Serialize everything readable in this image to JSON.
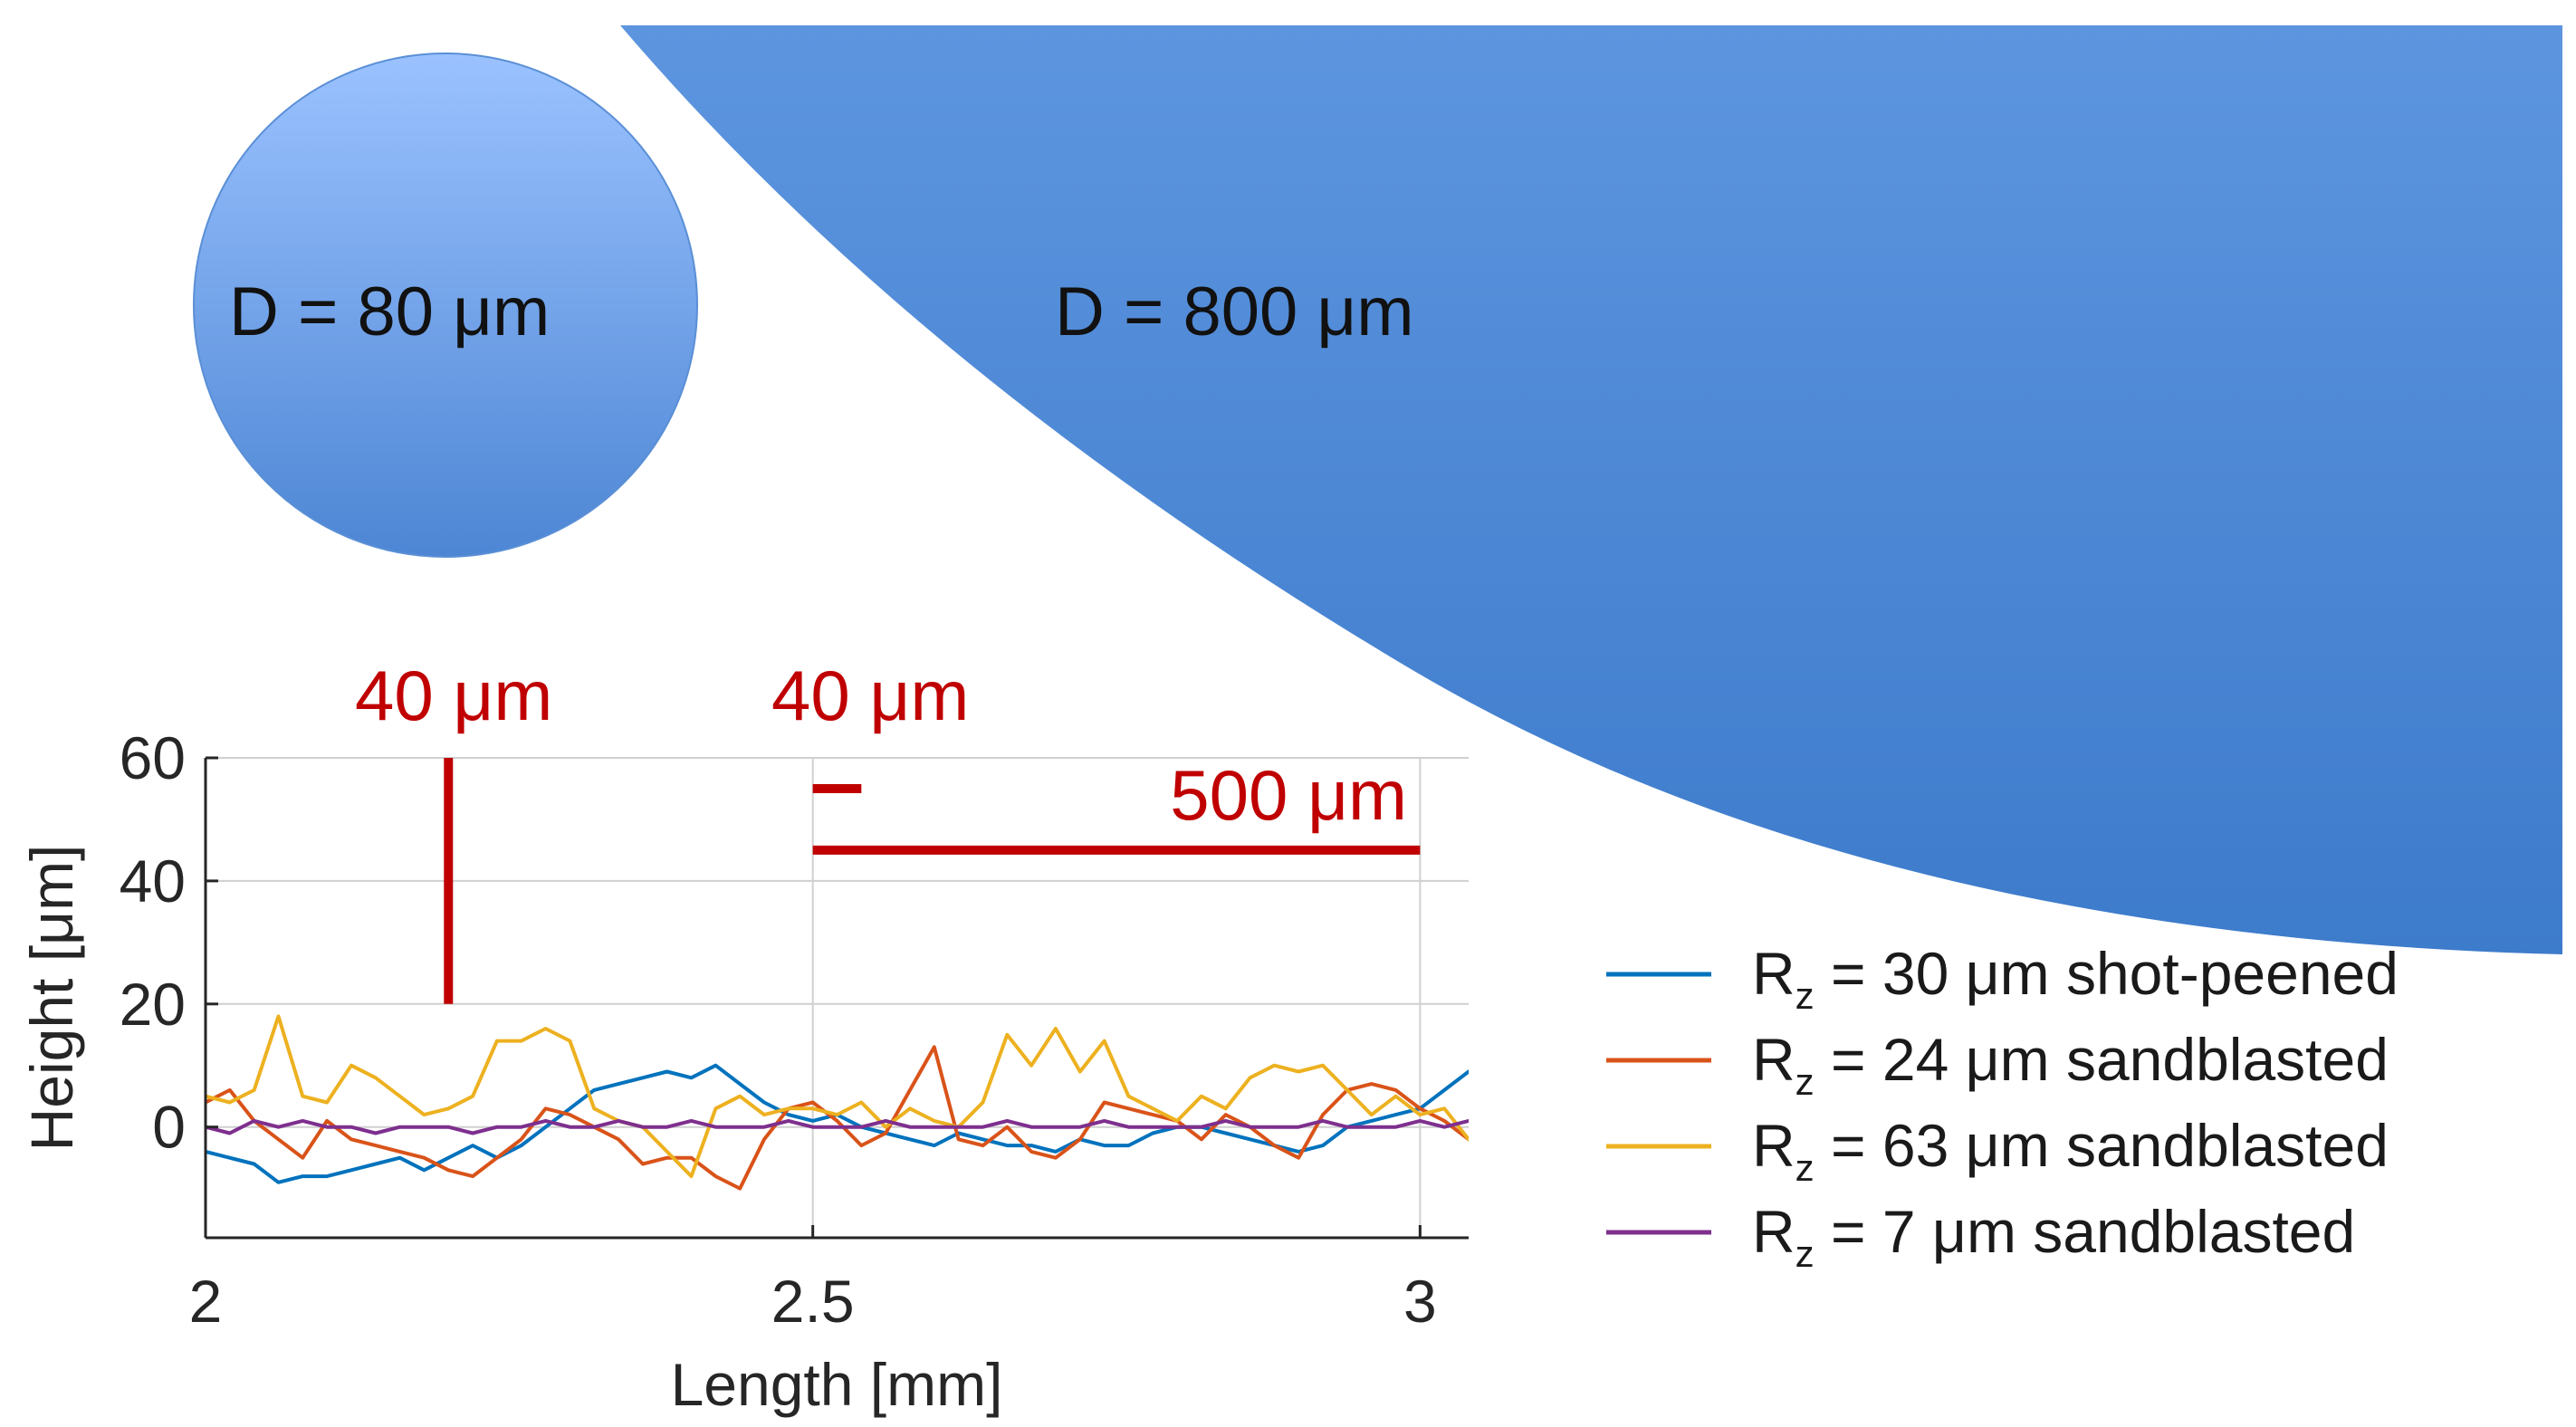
{
  "chart_data": {
    "type": "line",
    "xlabel": "Length [mm]",
    "ylabel": "Height [μm]",
    "xlim": [
      2,
      3.04
    ],
    "ylim": [
      -18,
      60
    ],
    "x_ticks": [
      "2",
      "2.5",
      "3"
    ],
    "y_ticks": [
      "0",
      "20",
      "40",
      "60"
    ],
    "grid": true,
    "legend_position": "right",
    "x": [
      2.0,
      2.02,
      2.04,
      2.06,
      2.08,
      2.1,
      2.12,
      2.14,
      2.16,
      2.18,
      2.2,
      2.22,
      2.24,
      2.26,
      2.28,
      2.3,
      2.32,
      2.34,
      2.36,
      2.38,
      2.4,
      2.42,
      2.44,
      2.46,
      2.48,
      2.5,
      2.52,
      2.54,
      2.56,
      2.58,
      2.6,
      2.62,
      2.64,
      2.66,
      2.68,
      2.7,
      2.72,
      2.74,
      2.76,
      2.78,
      2.8,
      2.82,
      2.84,
      2.86,
      2.88,
      2.9,
      2.92,
      2.94,
      2.96,
      2.98,
      3.0,
      3.02,
      3.04
    ],
    "series": [
      {
        "name": "shot-peened",
        "legend_main": "R",
        "legend_sub": "z",
        "legend_rest": " = 30 μm shot-peened",
        "color": "#0072bd",
        "values": [
          -4,
          -5,
          -6,
          -9,
          -8,
          -8,
          -7,
          -6,
          -5,
          -7,
          -5,
          -3,
          -5,
          -3,
          0,
          3,
          6,
          7,
          8,
          9,
          8,
          10,
          7,
          4,
          2,
          1,
          2,
          0,
          -1,
          -2,
          -3,
          -1,
          -2,
          -3,
          -3,
          -4,
          -2,
          -3,
          -3,
          -1,
          0,
          0,
          -1,
          -2,
          -3,
          -4,
          -3,
          0,
          1,
          2,
          3,
          6,
          9
        ]
      },
      {
        "name": "sandblasted",
        "legend_main": "R",
        "legend_sub": "z",
        "legend_rest": " = 24 μm sandblasted",
        "color": "#d95319",
        "values": [
          4,
          6,
          1,
          -2,
          -5,
          1,
          -2,
          -3,
          -4,
          -5,
          -7,
          -8,
          -5,
          -2,
          3,
          2,
          0,
          -2,
          -6,
          -5,
          -5,
          -8,
          -10,
          -2,
          3,
          4,
          1,
          -3,
          -1,
          6,
          13,
          -2,
          -3,
          0,
          -4,
          -5,
          -2,
          4,
          3,
          2,
          1,
          -2,
          2,
          0,
          -3,
          -5,
          2,
          6,
          7,
          6,
          3,
          1,
          -2
        ]
      },
      {
        "name": "sandblasted",
        "legend_main": "R",
        "legend_sub": "z",
        "legend_rest": " = 63 μm sandblasted",
        "color": "#edb120",
        "values": [
          5,
          4,
          6,
          18,
          5,
          4,
          10,
          8,
          5,
          2,
          3,
          5,
          14,
          14,
          16,
          14,
          3,
          1,
          0,
          -4,
          -8,
          3,
          5,
          2,
          3,
          3,
          2,
          4,
          0,
          3,
          1,
          0,
          4,
          15,
          10,
          16,
          9,
          14,
          5,
          3,
          1,
          5,
          3,
          8,
          10,
          9,
          10,
          6,
          2,
          5,
          2,
          3,
          -2
        ]
      },
      {
        "name": "sandblasted",
        "legend_main": "R",
        "legend_sub": "z",
        "legend_rest": " =   7 μm sandblasted",
        "color": "#7e2f8e",
        "values": [
          0,
          -1,
          1,
          0,
          1,
          0,
          0,
          -1,
          0,
          0,
          0,
          -1,
          0,
          0,
          1,
          0,
          0,
          1,
          0,
          0,
          1,
          0,
          0,
          0,
          1,
          0,
          0,
          0,
          1,
          0,
          0,
          0,
          0,
          1,
          0,
          0,
          0,
          1,
          0,
          0,
          0,
          0,
          1,
          0,
          0,
          0,
          1,
          0,
          0,
          0,
          1,
          0,
          1
        ]
      }
    ],
    "annotations": {
      "scale_bar_40_vertical": {
        "label": "40 μm",
        "x": 2.2,
        "y_from": 20,
        "y_to": 60
      },
      "scale_bar_40_horizontal": {
        "label": "40 μm",
        "x_from": 2.5,
        "x_to": 2.54,
        "y": 55
      },
      "scale_bar_500": {
        "label": "500 μm",
        "x_from": 2.5,
        "x_to": 3.0,
        "y": 45
      },
      "scale_color": "#c00000"
    }
  },
  "particles": {
    "small": {
      "label": "D = 80 μm",
      "color_top": "#9bc2ff",
      "color_bottom": "#4d86d4"
    },
    "large": {
      "label": "D = 800 μm",
      "color_top": "#5d95df",
      "color_bottom": "#3d7bcb"
    }
  }
}
